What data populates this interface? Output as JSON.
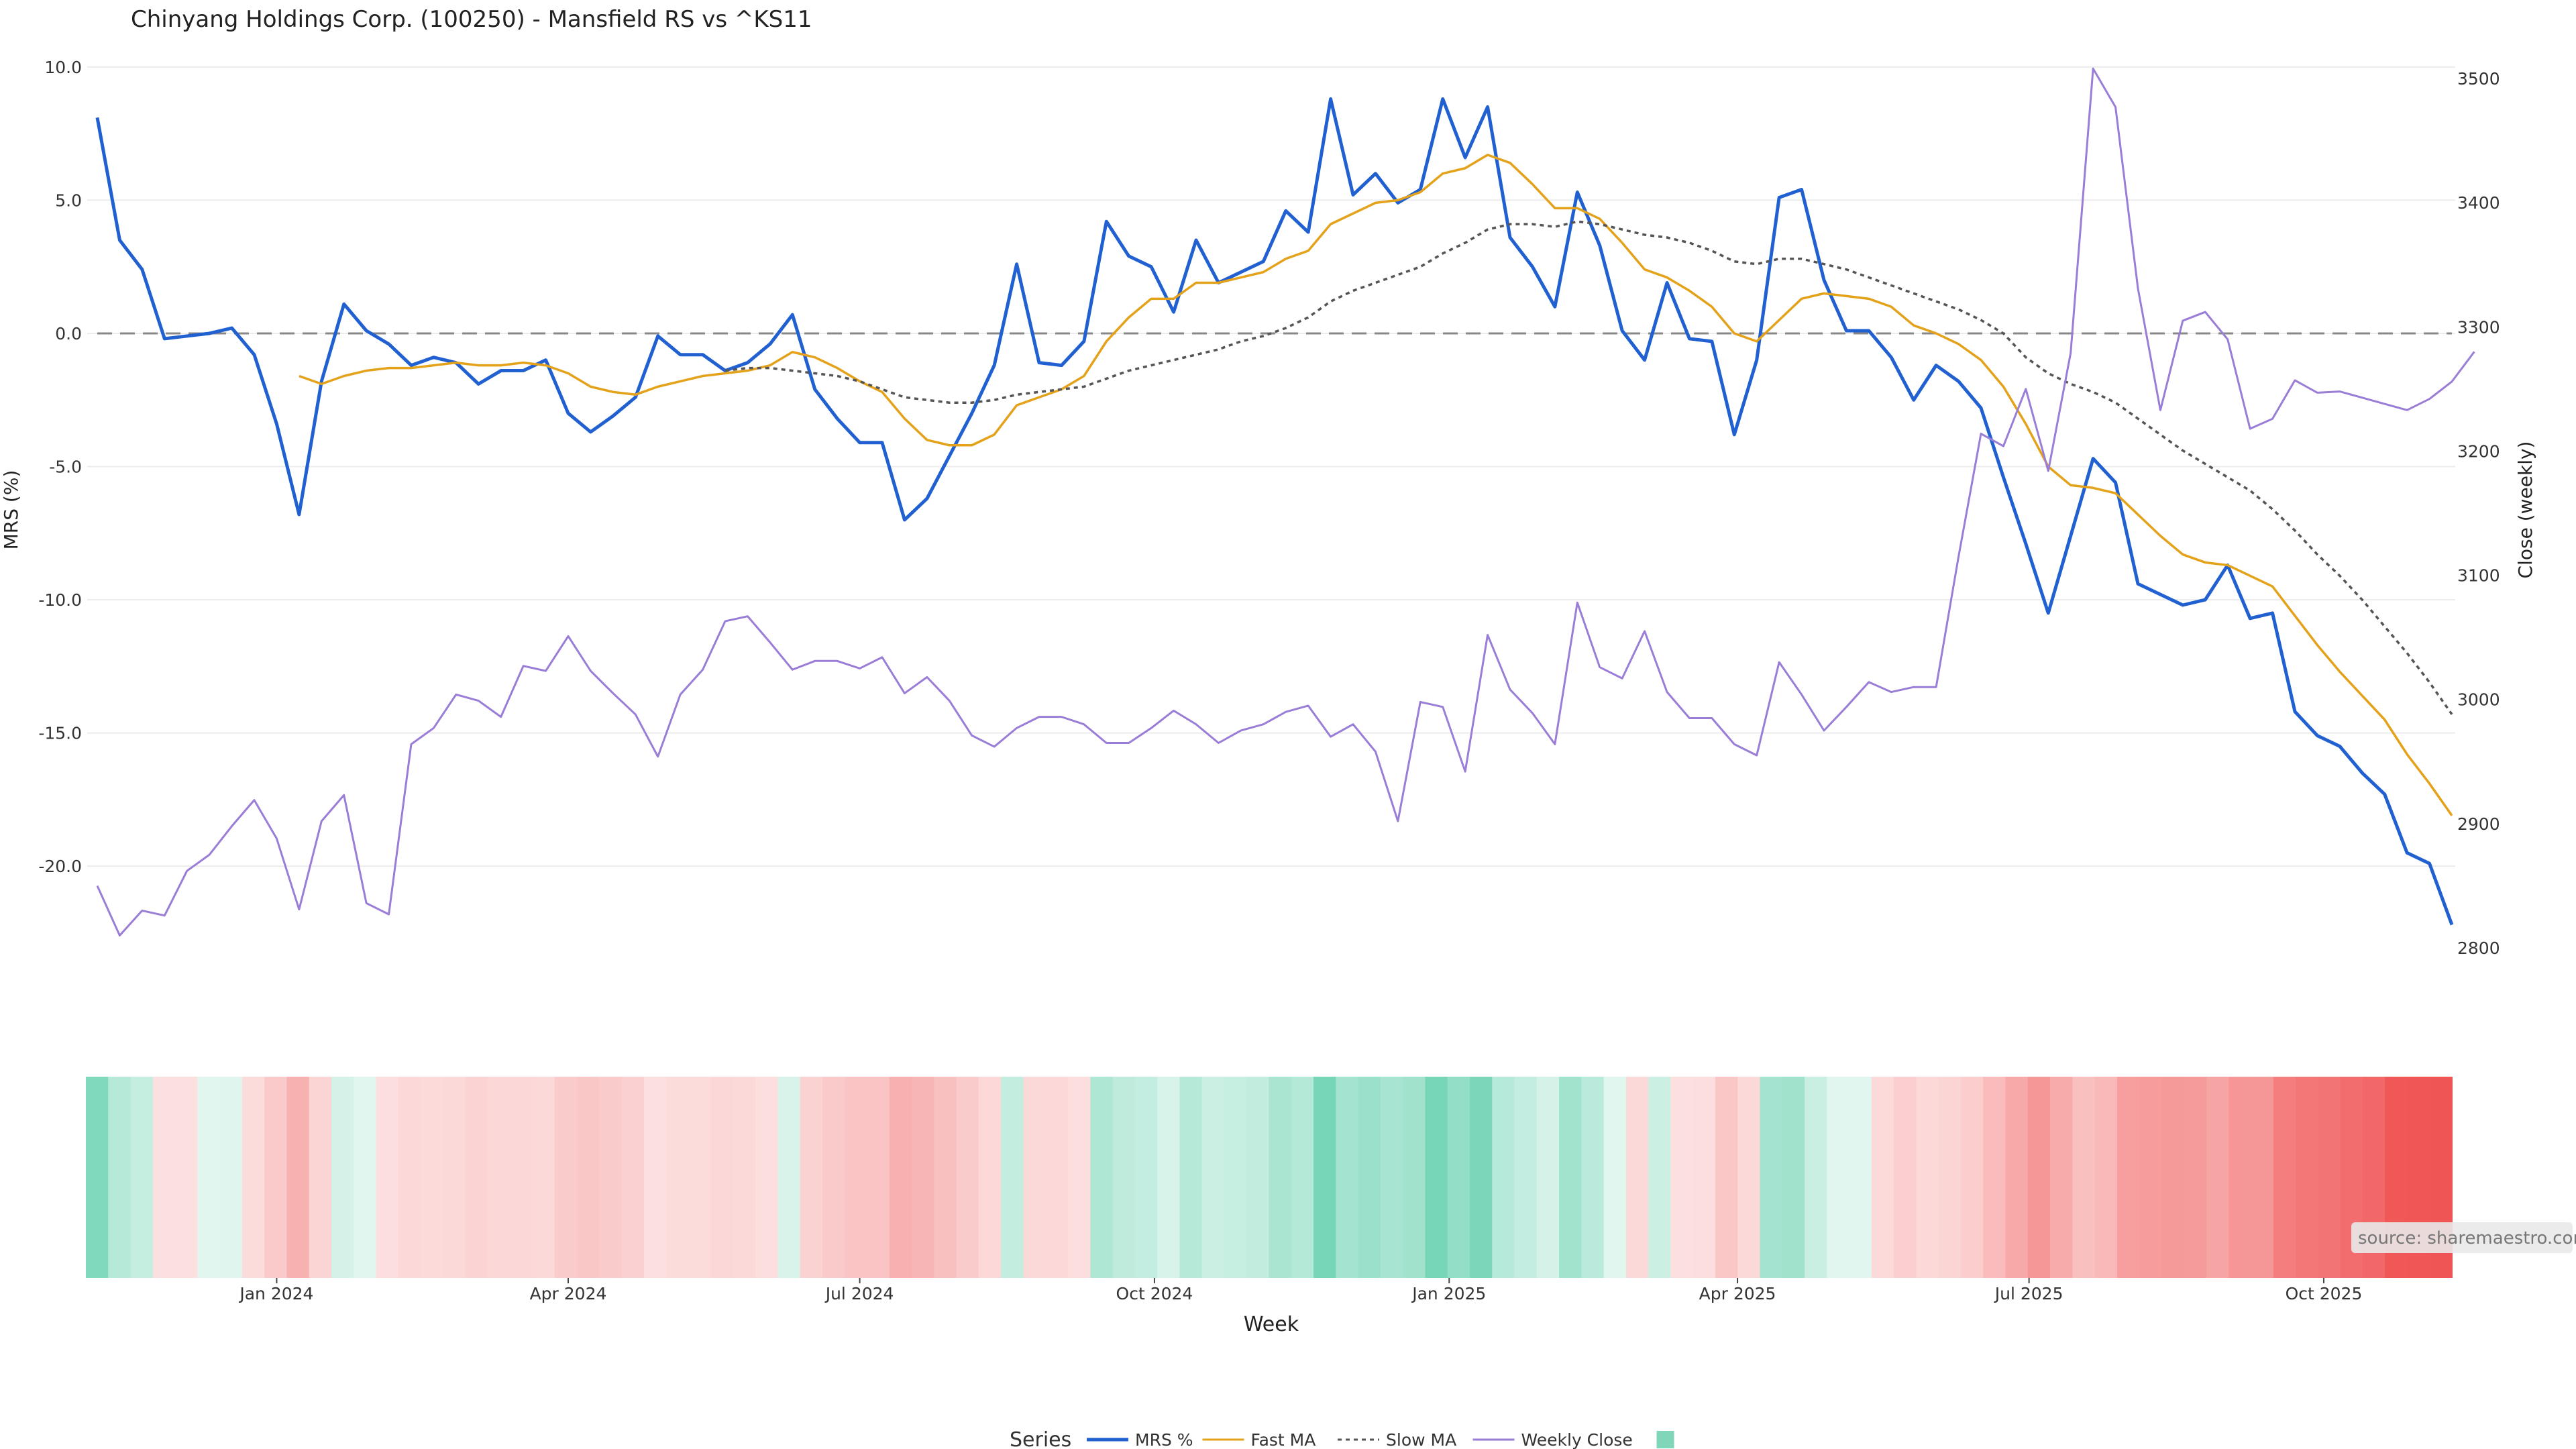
{
  "chart_data": {
    "type": "line",
    "title": "Chinyang Holdings Corp. (100250) - Mansfield RS vs ^KS11",
    "xlabel": "Week",
    "ylabel_left": "MRS (%)",
    "ylabel_right": "Close (weekly)",
    "ylim_left": [
      -24,
      10.5
    ],
    "ylim_right": [
      2780,
      3520
    ],
    "left_ticks": [
      "10.0",
      "5.0",
      "0.0",
      "-5.0",
      "-10.0",
      "-15.0",
      "-20.0"
    ],
    "right_ticks": [
      "3500",
      "3400",
      "3300",
      "3200",
      "3100",
      "3000",
      "2900",
      "2800"
    ],
    "x_start": "2023-11-06",
    "x_ticks": [
      "Jan 2024",
      "Apr 2024",
      "Jul 2024",
      "Oct 2024",
      "Jan 2025",
      "Apr 2025",
      "Jul 2025",
      "Oct 2025"
    ],
    "zero_line": 0,
    "grid": true,
    "legend": {
      "title": "Series",
      "position": "bottom-center",
      "items": [
        {
          "label": "MRS %",
          "color": "#2160d0",
          "style": "solid"
        },
        {
          "label": "Fast MA",
          "color": "#e3a21a",
          "style": "solid"
        },
        {
          "label": "Slow MA",
          "color": "#555555",
          "style": "dotted"
        },
        {
          "label": "Weekly Close",
          "color": "#9a7dd6",
          "style": "solid"
        },
        {
          "label": "",
          "color": "#7fd6b8",
          "style": "swatch"
        }
      ]
    },
    "source_label": "source: sharemaestro.com",
    "series": [
      {
        "name": "MRS %",
        "axis": "left",
        "color": "#2160d0",
        "values": [
          8.1,
          3.5,
          2.4,
          -0.2,
          -0.1,
          0.0,
          0.2,
          -0.8,
          -3.4,
          -6.8,
          -1.8,
          1.1,
          0.1,
          -0.4,
          -1.2,
          -0.9,
          -1.1,
          -1.9,
          -1.4,
          -1.4,
          -1.0,
          -3.0,
          -3.7,
          -3.1,
          -2.4,
          -0.1,
          -0.8,
          -0.8,
          -1.4,
          -1.1,
          -0.4,
          0.7,
          -2.1,
          -3.2,
          -4.1,
          -4.1,
          -7.0,
          -6.2,
          -4.6,
          -3.0,
          -1.2,
          2.6,
          -1.1,
          -1.2,
          -0.3,
          4.2,
          2.9,
          2.5,
          0.8,
          3.5,
          1.9,
          2.3,
          2.7,
          4.6,
          3.8,
          8.8,
          5.2,
          6.0,
          4.9,
          5.4,
          8.8,
          6.6,
          8.5,
          3.6,
          2.5,
          1.0,
          5.3,
          3.3,
          0.1,
          -1.0,
          1.9,
          -0.2,
          -0.3,
          -3.8,
          -1.0,
          5.1,
          5.4,
          2.0,
          0.1,
          0.1,
          -0.9,
          -2.5,
          -1.2,
          -1.8,
          -2.8,
          -5.4,
          -7.9,
          -10.5,
          -7.6,
          -4.7,
          -5.6,
          -9.4,
          -9.8,
          -10.2,
          -10.0,
          -8.7,
          -10.7,
          -10.5,
          -14.2,
          -15.1,
          -15.5,
          -16.5,
          -17.3,
          -19.5,
          -19.9,
          -22.2
        ]
      },
      {
        "name": "Fast MA",
        "axis": "left",
        "color": "#e3a21a",
        "values": [
          null,
          null,
          null,
          null,
          null,
          null,
          null,
          null,
          null,
          -1.6,
          -1.9,
          -1.6,
          -1.4,
          -1.3,
          -1.3,
          -1.2,
          -1.1,
          -1.2,
          -1.2,
          -1.1,
          -1.2,
          -1.5,
          -2.0,
          -2.2,
          -2.3,
          -2.0,
          -1.8,
          -1.6,
          -1.5,
          -1.4,
          -1.2,
          -0.7,
          -0.9,
          -1.3,
          -1.8,
          -2.2,
          -3.2,
          -4.0,
          -4.2,
          -4.2,
          -3.8,
          -2.7,
          -2.4,
          -2.1,
          -1.6,
          -0.3,
          0.6,
          1.3,
          1.3,
          1.9,
          1.9,
          2.1,
          2.3,
          2.8,
          3.1,
          4.1,
          4.5,
          4.9,
          5.0,
          5.3,
          6.0,
          6.2,
          6.7,
          6.4,
          5.6,
          4.7,
          4.7,
          4.3,
          3.4,
          2.4,
          2.1,
          1.6,
          1.0,
          0.0,
          -0.3,
          0.5,
          1.3,
          1.5,
          1.4,
          1.3,
          1.0,
          0.3,
          0.0,
          -0.4,
          -1.0,
          -2.0,
          -3.4,
          -5.0,
          -5.7,
          -5.8,
          -6.0,
          -6.8,
          -7.6,
          -8.3,
          -8.6,
          -8.7,
          -9.1,
          -9.5,
          -10.6,
          -11.7,
          -12.7,
          -13.6,
          -14.5,
          -15.8,
          -16.9,
          -18.1
        ]
      },
      {
        "name": "Slow MA",
        "axis": "left",
        "color": "#555555",
        "values": [
          null,
          null,
          null,
          null,
          null,
          null,
          null,
          null,
          null,
          null,
          null,
          null,
          null,
          null,
          null,
          null,
          null,
          null,
          null,
          null,
          null,
          null,
          null,
          null,
          null,
          null,
          null,
          null,
          -1.4,
          -1.3,
          -1.3,
          -1.4,
          -1.5,
          -1.6,
          -1.8,
          -2.1,
          -2.4,
          -2.5,
          -2.6,
          -2.6,
          -2.5,
          -2.3,
          -2.2,
          -2.1,
          -2.0,
          -1.7,
          -1.4,
          -1.2,
          -1.0,
          -0.8,
          -0.6,
          -0.3,
          -0.1,
          0.2,
          0.6,
          1.2,
          1.6,
          1.9,
          2.2,
          2.5,
          3.0,
          3.4,
          3.9,
          4.1,
          4.1,
          4.0,
          4.2,
          4.1,
          3.9,
          3.7,
          3.6,
          3.4,
          3.1,
          2.7,
          2.6,
          2.8,
          2.8,
          2.6,
          2.4,
          2.1,
          1.8,
          1.5,
          1.2,
          0.9,
          0.5,
          0.0,
          -0.9,
          -1.5,
          -1.9,
          -2.2,
          -2.6,
          -3.2,
          -3.8,
          -4.4,
          -4.9,
          -5.4,
          -5.9,
          -6.6,
          -7.4,
          -8.3,
          -9.1,
          -10.0,
          -11.0,
          -12.0,
          -13.1,
          -14.3
        ]
      },
      {
        "name": "Weekly Close",
        "axis": "right",
        "color": "#9a7dd6",
        "values": [
          2850,
          2810,
          2830,
          2826,
          2862,
          2875,
          2898,
          2919,
          2888,
          2831,
          2902,
          2923,
          2836,
          2827,
          2964,
          2977,
          3004,
          2999,
          2986,
          3027,
          3023,
          3051,
          3023,
          3005,
          2988,
          2954,
          3004,
          3024,
          3063,
          3067,
          3046,
          3024,
          3031,
          3031,
          3025,
          3034,
          3005,
          3018,
          2999,
          2971,
          2962,
          2977,
          2986,
          2986,
          2980,
          2965,
          2965,
          2977,
          2991,
          2980,
          2965,
          2975,
          2980,
          2990,
          2995,
          2970,
          2980,
          2958,
          2902,
          2998,
          2994,
          2942,
          3052,
          3008,
          2989,
          2964,
          3078,
          3026,
          3017,
          3055,
          3006,
          2985,
          2985,
          2964,
          2955,
          3030,
          3004,
          2975,
          2994,
          3014,
          3006,
          3010,
          3010,
          3115,
          3214,
          3204,
          3250,
          3184,
          3279,
          3508,
          3477,
          3331,
          3233,
          3305,
          3312,
          3290,
          3218,
          3226,
          3257,
          3247,
          3248,
          3243,
          3238,
          3233,
          3242,
          3256,
          3280
        ]
      }
    ],
    "heat_band": {
      "scale": "MRS %: green positive, red negative",
      "values": [
        8.1,
        3.5,
        2.4,
        -0.2,
        -0.1,
        0.0,
        0.2,
        -0.8,
        -3.4,
        -6.8,
        -1.8,
        1.1,
        0.1,
        -0.4,
        -1.2,
        -0.9,
        -1.1,
        -1.9,
        -1.4,
        -1.4,
        -1.0,
        -3.0,
        -3.7,
        -3.1,
        -2.4,
        -0.1,
        -0.8,
        -0.8,
        -1.4,
        -1.1,
        -0.4,
        0.7,
        -2.1,
        -3.2,
        -4.1,
        -4.1,
        -7.0,
        -6.2,
        -4.6,
        -3.0,
        -1.2,
        2.6,
        -1.1,
        -1.2,
        -0.3,
        4.2,
        2.9,
        2.5,
        0.8,
        3.5,
        1.9,
        2.3,
        2.7,
        4.6,
        3.8,
        8.8,
        5.2,
        6.0,
        4.9,
        5.4,
        8.8,
        6.6,
        8.5,
        3.6,
        2.5,
        1.0,
        5.3,
        3.3,
        0.1,
        -1.0,
        1.9,
        -0.2,
        -0.3,
        -3.8,
        -1.0,
        5.1,
        5.4,
        2.0,
        0.1,
        0.1,
        -0.9,
        -2.5,
        -1.2,
        -1.8,
        -2.8,
        -5.4,
        -7.9,
        -10.5,
        -7.6,
        -4.7,
        -5.6,
        -9.4,
        -9.8,
        -10.2,
        -10.0,
        -8.7,
        -10.7,
        -10.5,
        -14.2,
        -15.1,
        -15.5,
        -16.5,
        -17.3,
        -19.5,
        -19.9,
        -22.2
      ]
    }
  }
}
